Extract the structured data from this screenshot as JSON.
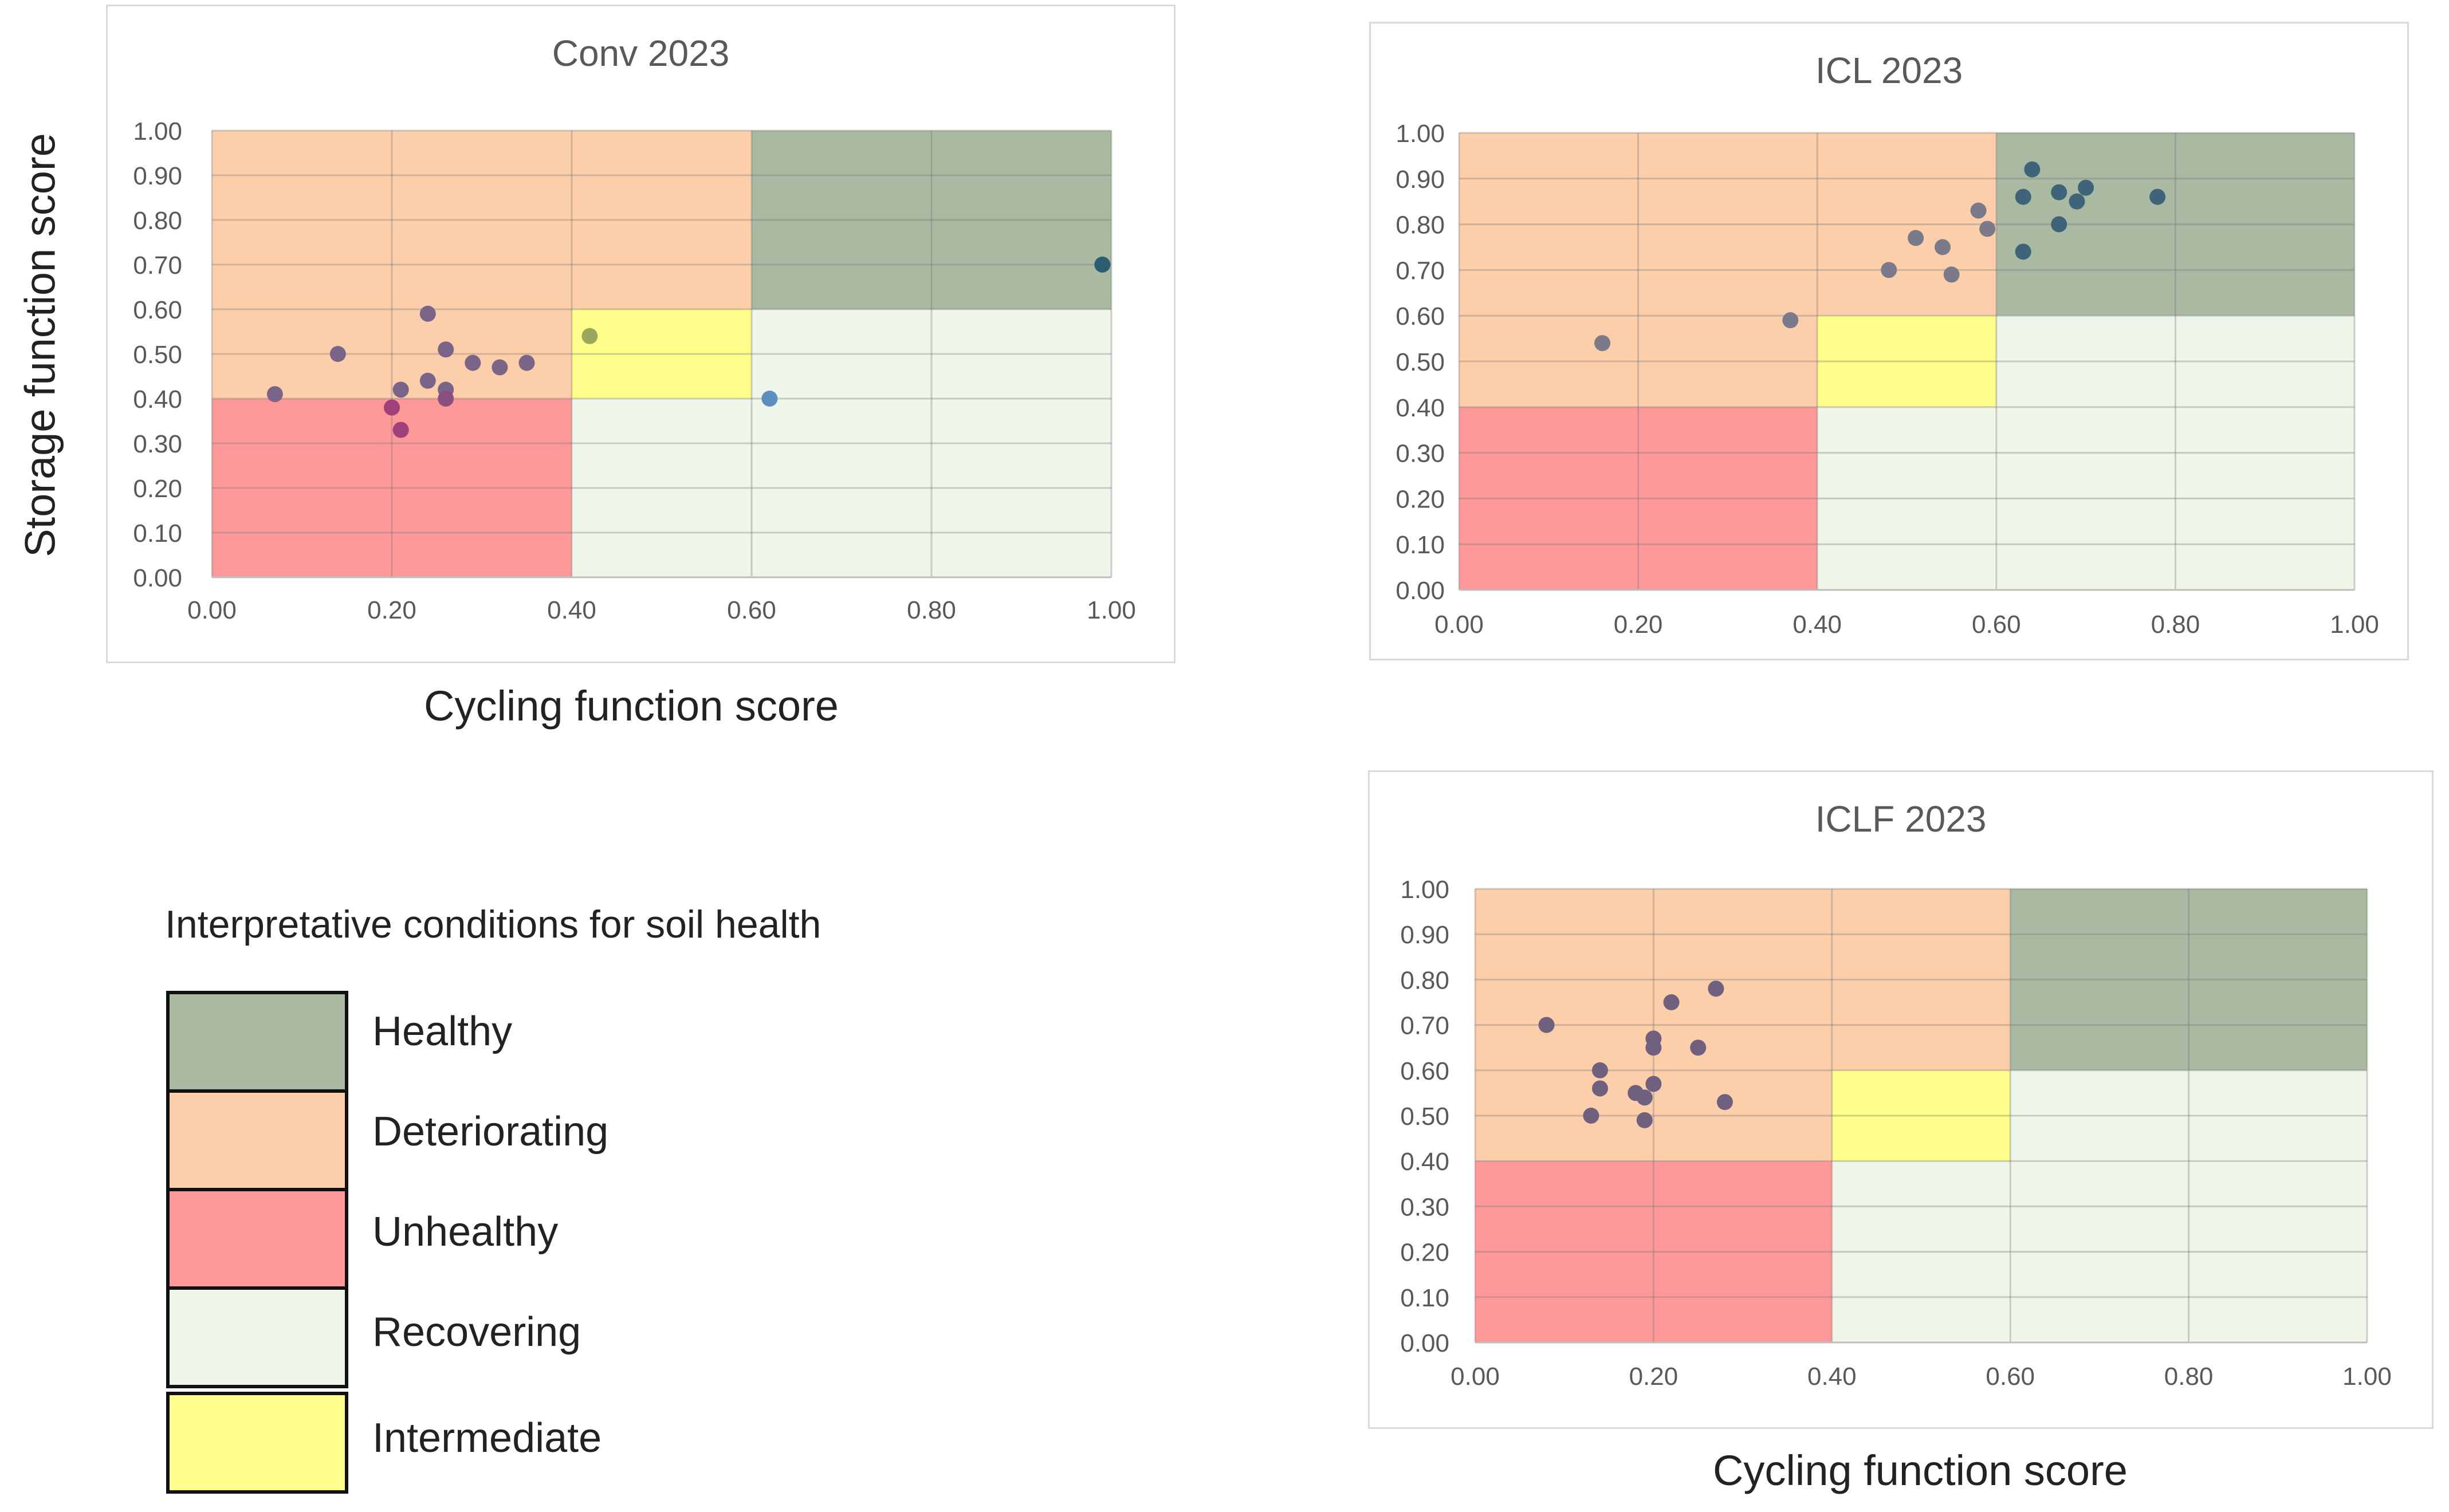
{
  "axis_labels": {
    "y": "Storage function score",
    "x_top": "Cycling function score",
    "x_bottom": "Cycling function score"
  },
  "legend": {
    "title": "Interpretative conditions for soil health",
    "items": [
      {
        "label": "Healthy",
        "color": "#a9b9a2"
      },
      {
        "label": "Deteriorating",
        "color": "#fccfaa"
      },
      {
        "label": "Unhealthy",
        "color": "#ff9898"
      },
      {
        "label": "Recovering",
        "color": "#eef6ea"
      },
      {
        "label": "Intermediate",
        "color": "#ffff8c"
      }
    ]
  },
  "chart_data": [
    {
      "type": "scatter",
      "title": "Conv 2023",
      "xlabel": "Cycling function score",
      "ylabel": "Storage function score",
      "xlim": [
        0,
        1
      ],
      "ylim": [
        0,
        1
      ],
      "x_ticks": [
        "0.00",
        "0.20",
        "0.40",
        "0.60",
        "0.80",
        "1.00"
      ],
      "y_ticks": [
        "0.00",
        "0.10",
        "0.20",
        "0.30",
        "0.40",
        "0.50",
        "0.60",
        "0.70",
        "0.80",
        "0.90",
        "1.00"
      ],
      "zones": [
        {
          "name": "Deteriorating",
          "x": [
            0,
            0.6
          ],
          "y": [
            0.4,
            1.0
          ],
          "color": "#fccfaa"
        },
        {
          "name": "Healthy",
          "x": [
            0.6,
            1.0
          ],
          "y": [
            0.6,
            1.0
          ],
          "color": "#a9b9a2"
        },
        {
          "name": "Unhealthy",
          "x": [
            0,
            0.4
          ],
          "y": [
            0,
            0.4
          ],
          "color": "#ff9898"
        },
        {
          "name": "Recovering",
          "x": [
            0.4,
            1.0
          ],
          "y": [
            0,
            0.4
          ],
          "color": "#eef6ea"
        },
        {
          "name": "Recovering",
          "x": [
            0.6,
            1.0
          ],
          "y": [
            0.4,
            0.6
          ],
          "color": "#eef6ea"
        },
        {
          "name": "Intermediate",
          "x": [
            0.4,
            0.6
          ],
          "y": [
            0.4,
            0.6
          ],
          "color": "#ffff8c"
        }
      ],
      "points": [
        {
          "x": 0.07,
          "y": 0.41,
          "color": "#7a6487"
        },
        {
          "x": 0.14,
          "y": 0.5,
          "color": "#7a6487"
        },
        {
          "x": 0.2,
          "y": 0.38,
          "color": "#a0407a"
        },
        {
          "x": 0.21,
          "y": 0.33,
          "color": "#a0407a"
        },
        {
          "x": 0.21,
          "y": 0.42,
          "color": "#7a6487"
        },
        {
          "x": 0.24,
          "y": 0.59,
          "color": "#7a6487"
        },
        {
          "x": 0.24,
          "y": 0.44,
          "color": "#7a6487"
        },
        {
          "x": 0.26,
          "y": 0.51,
          "color": "#7a6487"
        },
        {
          "x": 0.26,
          "y": 0.42,
          "color": "#7a6487"
        },
        {
          "x": 0.26,
          "y": 0.4,
          "color": "#8a4f7e"
        },
        {
          "x": 0.29,
          "y": 0.48,
          "color": "#7a6487"
        },
        {
          "x": 0.32,
          "y": 0.47,
          "color": "#7a6487"
        },
        {
          "x": 0.35,
          "y": 0.48,
          "color": "#7a6487"
        },
        {
          "x": 0.42,
          "y": 0.54,
          "color": "#9aa85e"
        },
        {
          "x": 0.62,
          "y": 0.4,
          "color": "#5b8fc0"
        },
        {
          "x": 0.99,
          "y": 0.7,
          "color": "#2c5d70"
        }
      ]
    },
    {
      "type": "scatter",
      "title": "ICL 2023",
      "xlabel": "Cycling function score",
      "ylabel": "Storage function score",
      "xlim": [
        0,
        1
      ],
      "ylim": [
        0,
        1
      ],
      "x_ticks": [
        "0.00",
        "0.20",
        "0.40",
        "0.60",
        "0.80",
        "1.00"
      ],
      "y_ticks": [
        "0.00",
        "0.10",
        "0.20",
        "0.30",
        "0.40",
        "0.50",
        "0.60",
        "0.70",
        "0.80",
        "0.90",
        "1.00"
      ],
      "zones": [
        {
          "name": "Deteriorating",
          "x": [
            0,
            0.6
          ],
          "y": [
            0.4,
            1.0
          ],
          "color": "#fccfaa"
        },
        {
          "name": "Healthy",
          "x": [
            0.6,
            1.0
          ],
          "y": [
            0.6,
            1.0
          ],
          "color": "#a9b9a2"
        },
        {
          "name": "Unhealthy",
          "x": [
            0,
            0.4
          ],
          "y": [
            0,
            0.4
          ],
          "color": "#ff9898"
        },
        {
          "name": "Recovering",
          "x": [
            0.4,
            1.0
          ],
          "y": [
            0,
            0.4
          ],
          "color": "#eef6ea"
        },
        {
          "name": "Recovering",
          "x": [
            0.6,
            1.0
          ],
          "y": [
            0.4,
            0.6
          ],
          "color": "#eef6ea"
        },
        {
          "name": "Intermediate",
          "x": [
            0.4,
            0.6
          ],
          "y": [
            0.4,
            0.6
          ],
          "color": "#ffff8c"
        }
      ],
      "points": [
        {
          "x": 0.16,
          "y": 0.54,
          "color": "#7a7a8a"
        },
        {
          "x": 0.37,
          "y": 0.59,
          "color": "#7a7a8a"
        },
        {
          "x": 0.48,
          "y": 0.7,
          "color": "#7a7a8a"
        },
        {
          "x": 0.51,
          "y": 0.77,
          "color": "#7a7a8a"
        },
        {
          "x": 0.54,
          "y": 0.75,
          "color": "#7a7a8a"
        },
        {
          "x": 0.55,
          "y": 0.69,
          "color": "#7a7a8a"
        },
        {
          "x": 0.58,
          "y": 0.83,
          "color": "#7a7a8a"
        },
        {
          "x": 0.59,
          "y": 0.79,
          "color": "#7a7a8a"
        },
        {
          "x": 0.63,
          "y": 0.86,
          "color": "#3d6478"
        },
        {
          "x": 0.63,
          "y": 0.74,
          "color": "#3d6478"
        },
        {
          "x": 0.64,
          "y": 0.92,
          "color": "#3d6478"
        },
        {
          "x": 0.67,
          "y": 0.87,
          "color": "#3d6478"
        },
        {
          "x": 0.67,
          "y": 0.8,
          "color": "#3d6478"
        },
        {
          "x": 0.69,
          "y": 0.85,
          "color": "#3d6478"
        },
        {
          "x": 0.7,
          "y": 0.88,
          "color": "#3d6478"
        },
        {
          "x": 0.78,
          "y": 0.86,
          "color": "#3d6478"
        }
      ]
    },
    {
      "type": "scatter",
      "title": "ICLF 2023",
      "xlabel": "Cycling function score",
      "ylabel": "Storage function score",
      "xlim": [
        0,
        1
      ],
      "ylim": [
        0,
        1
      ],
      "x_ticks": [
        "0.00",
        "0.20",
        "0.40",
        "0.60",
        "0.80",
        "1.00"
      ],
      "y_ticks": [
        "0.00",
        "0.10",
        "0.20",
        "0.30",
        "0.40",
        "0.50",
        "0.60",
        "0.70",
        "0.80",
        "0.90",
        "1.00"
      ],
      "zones": [
        {
          "name": "Deteriorating",
          "x": [
            0,
            0.6
          ],
          "y": [
            0.4,
            1.0
          ],
          "color": "#fccfaa"
        },
        {
          "name": "Healthy",
          "x": [
            0.6,
            1.0
          ],
          "y": [
            0.6,
            1.0
          ],
          "color": "#a9b9a2"
        },
        {
          "name": "Unhealthy",
          "x": [
            0,
            0.4
          ],
          "y": [
            0,
            0.4
          ],
          "color": "#ff9898"
        },
        {
          "name": "Recovering",
          "x": [
            0.4,
            1.0
          ],
          "y": [
            0,
            0.4
          ],
          "color": "#eef6ea"
        },
        {
          "name": "Recovering",
          "x": [
            0.6,
            1.0
          ],
          "y": [
            0.4,
            0.6
          ],
          "color": "#eef6ea"
        },
        {
          "name": "Intermediate",
          "x": [
            0.4,
            0.6
          ],
          "y": [
            0.4,
            0.6
          ],
          "color": "#ffff8c"
        }
      ],
      "points": [
        {
          "x": 0.08,
          "y": 0.7,
          "color": "#6e607e"
        },
        {
          "x": 0.13,
          "y": 0.5,
          "color": "#6e607e"
        },
        {
          "x": 0.14,
          "y": 0.6,
          "color": "#6e607e"
        },
        {
          "x": 0.14,
          "y": 0.56,
          "color": "#6e607e"
        },
        {
          "x": 0.18,
          "y": 0.55,
          "color": "#6e607e"
        },
        {
          "x": 0.19,
          "y": 0.54,
          "color": "#6e607e"
        },
        {
          "x": 0.19,
          "y": 0.49,
          "color": "#6e607e"
        },
        {
          "x": 0.2,
          "y": 0.67,
          "color": "#6e607e"
        },
        {
          "x": 0.2,
          "y": 0.65,
          "color": "#6e607e"
        },
        {
          "x": 0.2,
          "y": 0.57,
          "color": "#6e607e"
        },
        {
          "x": 0.22,
          "y": 0.75,
          "color": "#6e607e"
        },
        {
          "x": 0.25,
          "y": 0.65,
          "color": "#6e607e"
        },
        {
          "x": 0.27,
          "y": 0.78,
          "color": "#6e607e"
        },
        {
          "x": 0.28,
          "y": 0.53,
          "color": "#6e607e"
        }
      ]
    }
  ]
}
